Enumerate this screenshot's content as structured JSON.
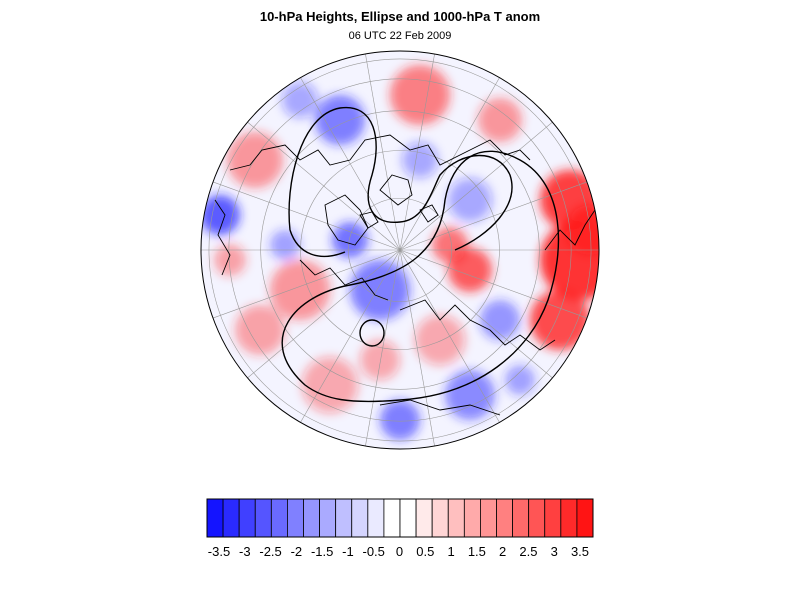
{
  "title": "10-hPa Heights, Ellipse and 1000-hPa T anom",
  "subtitle": "06 UTC 22 Feb 2009",
  "colorbar": {
    "colors": [
      "#1414ff",
      "#2a2aff",
      "#4040ff",
      "#5555ff",
      "#6a6aff",
      "#8080ff",
      "#9595ff",
      "#aaaaff",
      "#bfbfff",
      "#d5d5ff",
      "#eaeaff",
      "#ffffff",
      "#ffffff",
      "#ffeaea",
      "#ffd5d5",
      "#ffbfbf",
      "#ffaaaa",
      "#ff9595",
      "#ff8080",
      "#ff6a6a",
      "#ff5555",
      "#ff4040",
      "#ff2a2a",
      "#ff1414"
    ],
    "labels": [
      "-3.5",
      "-3",
      "-2.5",
      "-2",
      "-1.5",
      "-1",
      "-0.5",
      "0",
      "0.5",
      "1",
      "1.5",
      "2",
      "2.5",
      "3",
      "3.5"
    ]
  },
  "map": {
    "projection": "orthographic-polar",
    "colors": {
      "warm": "#ff2020",
      "cold": "#2020ff",
      "grid": "#999999",
      "coast": "#000000",
      "contour": "#000000"
    }
  }
}
